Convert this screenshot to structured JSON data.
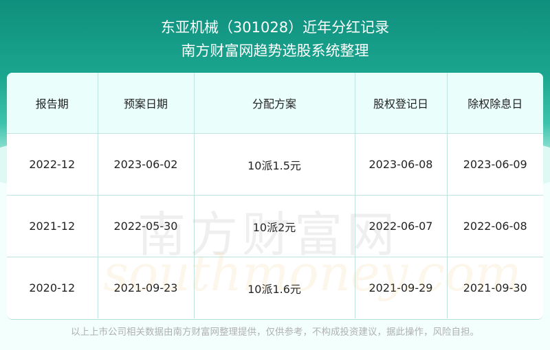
{
  "header": {
    "title": "东亚机械（301028）近年分红记录",
    "subtitle": "南方财富网趋势选股系统整理"
  },
  "table": {
    "columns": [
      "报告期",
      "预案日期",
      "分配方案",
      "股权登记日",
      "除权除息日"
    ],
    "rows": [
      [
        "2022-12",
        "2023-06-02",
        "10派1.5元",
        "2023-06-08",
        "2023-06-09"
      ],
      [
        "2021-12",
        "2022-05-30",
        "10派2元",
        "2022-06-07",
        "2022-06-08"
      ],
      [
        "2020-12",
        "2021-09-23",
        "10派1.6元",
        "2021-09-29",
        "2021-09-30"
      ]
    ]
  },
  "watermark": {
    "cn": "南方财富网",
    "en": "southmoney.com"
  },
  "footer": "以上上市公司相关数据由南方财富网整理提供，仅供参考，不构成投资建议，据此操作，风险自担。",
  "colors": {
    "header_top": "#0f8f7d",
    "header_row_bg": "#eafffc",
    "border": "#bfe3de"
  }
}
